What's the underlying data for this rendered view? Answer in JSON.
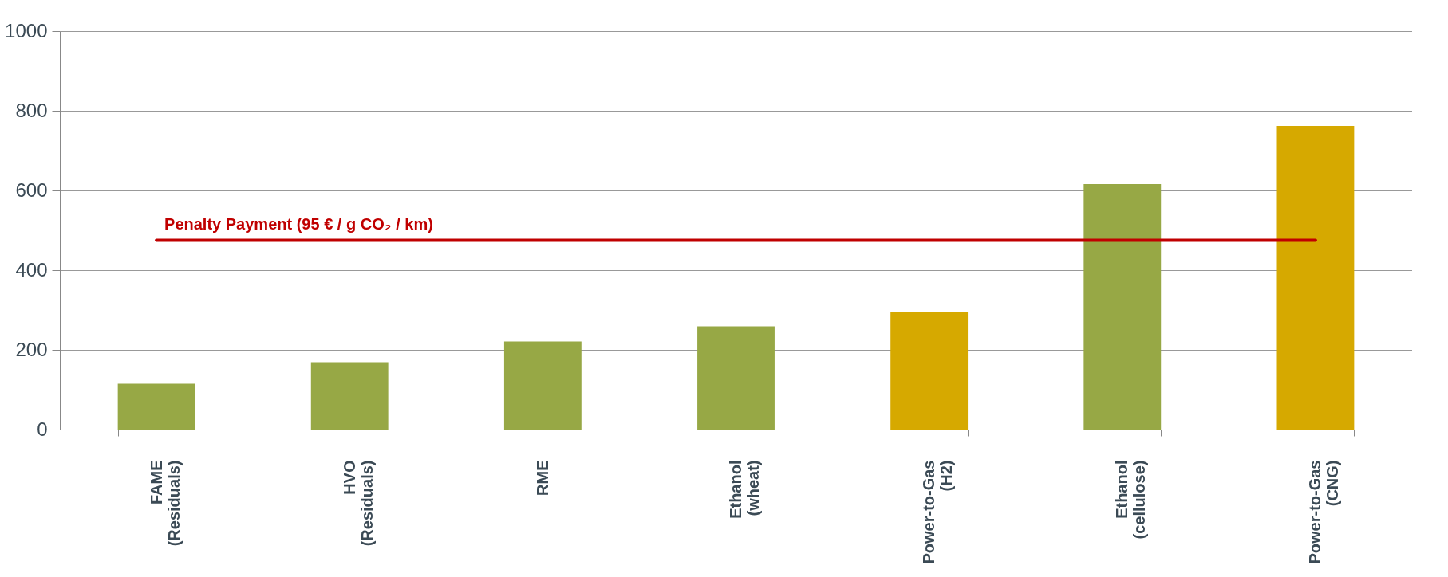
{
  "chart_data": {
    "type": "bar",
    "categories": [
      "FAME (Residuals)",
      "HVO (Residuals)",
      "RME",
      "Ethanol (wheat)",
      "Power-to-Gas (H2)",
      "Ethanol (cellulose)",
      "Power-to-Gas (CNG)"
    ],
    "values": [
      115,
      169,
      221,
      259,
      295,
      616,
      762
    ],
    "colors": [
      "#97a845",
      "#97a845",
      "#97a845",
      "#97a845",
      "#d6a900",
      "#97a845",
      "#d6a900"
    ],
    "ylim": [
      0,
      1000
    ],
    "yticks": [
      0,
      200,
      400,
      600,
      800,
      1000
    ],
    "grid": "y",
    "ref_lines": [
      {
        "axis": "y",
        "value": 475,
        "label": "Penalty Payment (95 € / g CO₂ / km)",
        "color": "#c00000"
      }
    ]
  }
}
